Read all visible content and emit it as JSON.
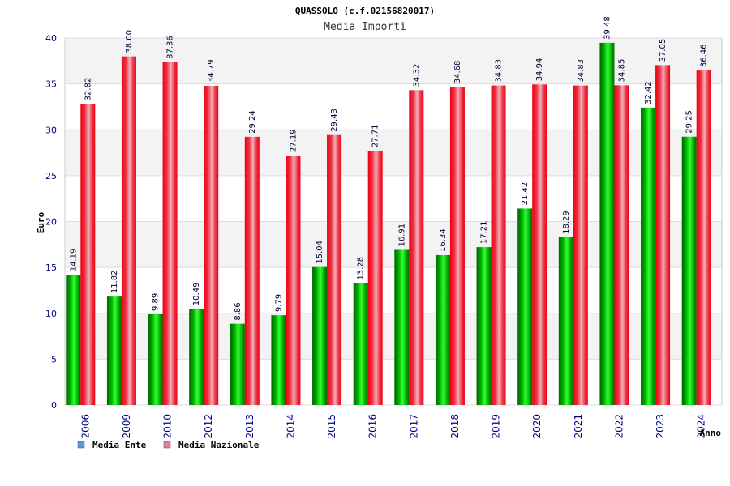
{
  "chart_data": {
    "type": "bar",
    "title": "QUASSOLO (c.f.02156820017)",
    "subtitle": "Media Importi",
    "xlabel": "Anno",
    "ylabel": "Euro",
    "ylim": [
      0,
      40
    ],
    "yticks": [
      0,
      5,
      10,
      15,
      20,
      25,
      30,
      35,
      40
    ],
    "grid": true,
    "legend_position": "bottom-left",
    "categories": [
      "2006",
      "2009",
      "2010",
      "2012",
      "2013",
      "2014",
      "2015",
      "2016",
      "2017",
      "2018",
      "2019",
      "2020",
      "2021",
      "2022",
      "2023",
      "2024"
    ],
    "series": [
      {
        "name": "Media Ente",
        "legend_color": "#5b9bd5",
        "color": "#00b000",
        "values": [
          14.19,
          11.82,
          9.89,
          10.49,
          8.86,
          9.79,
          15.04,
          13.28,
          16.91,
          16.34,
          17.21,
          21.42,
          18.29,
          39.48,
          32.42,
          29.25
        ],
        "labels": [
          "14.19",
          "11.82",
          "9.89",
          "10.49",
          "8.86",
          "9.79",
          "15.04",
          "13.28",
          "16.91",
          "16.34",
          "17.21",
          "21.42",
          "18.29",
          "39.48",
          "32.42",
          "29.25"
        ]
      },
      {
        "name": "Media Nazionale",
        "legend_color": "#e07fa0",
        "color": "#ee1122",
        "values": [
          32.82,
          38.0,
          37.36,
          34.79,
          29.24,
          27.19,
          29.43,
          27.71,
          34.32,
          34.68,
          34.83,
          34.94,
          34.83,
          34.85,
          37.05,
          36.46
        ],
        "labels": [
          "32.82",
          "38.00",
          "37.36",
          "34.79",
          "29.24",
          "27.19",
          "29.43",
          "27.71",
          "34.32",
          "34.68",
          "34.83",
          "34.94",
          "34.83",
          "34.85",
          "37.05",
          "36.46"
        ]
      }
    ]
  }
}
